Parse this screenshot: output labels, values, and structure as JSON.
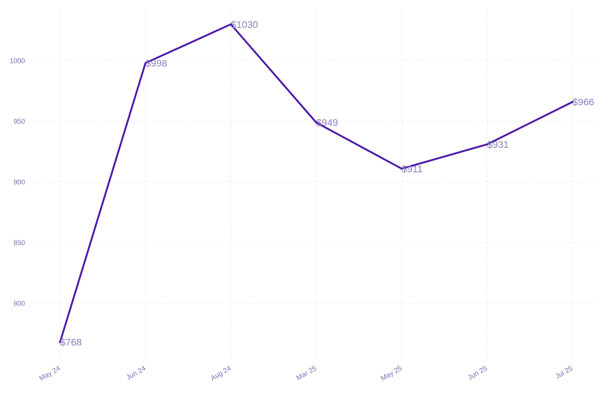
{
  "chart_data": {
    "type": "line",
    "title": "",
    "xlabel": "",
    "ylabel": "",
    "x": [
      "May 24",
      "Jun 24",
      "Aug 24",
      "Mar 25",
      "May 25",
      "Jun 25",
      "Jul 25"
    ],
    "series": [
      {
        "values": [
          768,
          998,
          1030,
          949,
          911,
          931,
          966
        ],
        "labels": [
          "$768",
          "$998",
          "$1030",
          "$949",
          "$911",
          "$931",
          "$966"
        ],
        "color": "#4a17a8"
      }
    ],
    "y_ticks": [
      "800",
      "850",
      "900",
      "950",
      "1000"
    ],
    "ylim": [
      754,
      1040
    ],
    "grid": true,
    "legend": "none"
  }
}
